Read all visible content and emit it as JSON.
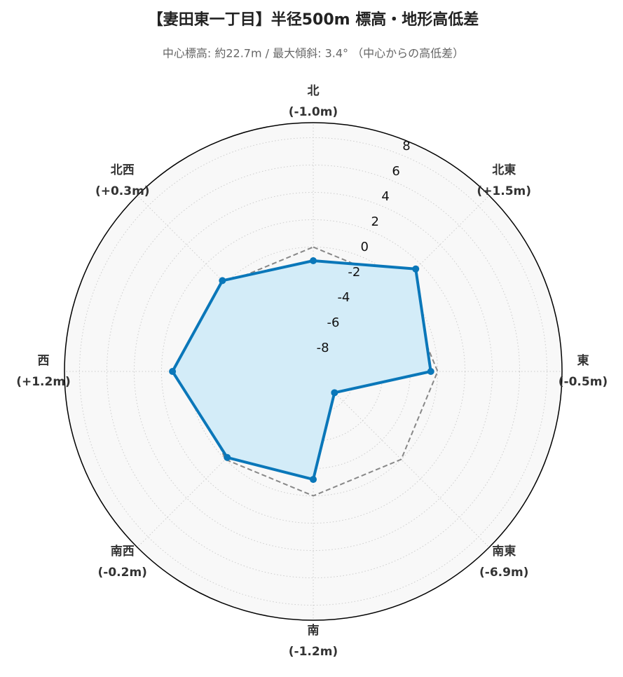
{
  "chart_data": {
    "type": "radar",
    "title": "【妻田東一丁目】半径500m 標高・地形高低差",
    "subtitle": "中心標高: 約22.7m / 最大傾斜: 3.4° （中心からの高低差）",
    "categories": [
      "北",
      "北東",
      "東",
      "南東",
      "南",
      "南西",
      "西",
      "北西"
    ],
    "series": [
      {
        "color": "#0a77b9",
        "fill": "#d3ecf8",
        "values": [
          -1.0,
          1.5,
          -0.5,
          -6.9,
          -1.2,
          -0.2,
          1.2,
          0.3
        ],
        "value_labels": [
          "(-1.0m)",
          "(+1.5m)",
          "(-0.5m)",
          "(-6.9m)",
          "(-1.2m)",
          "(-0.2m)",
          "(+1.2m)",
          "(+0.3m)"
        ]
      },
      {
        "color": "#888888",
        "dashed": true,
        "values": [
          0,
          0,
          0,
          0,
          0,
          0,
          0,
          0
        ]
      }
    ],
    "ylim": [
      -9.1,
      9.1
    ],
    "yticks": [
      -8,
      -6,
      -4,
      -2,
      0,
      2,
      4,
      6,
      8
    ],
    "grid": true
  }
}
